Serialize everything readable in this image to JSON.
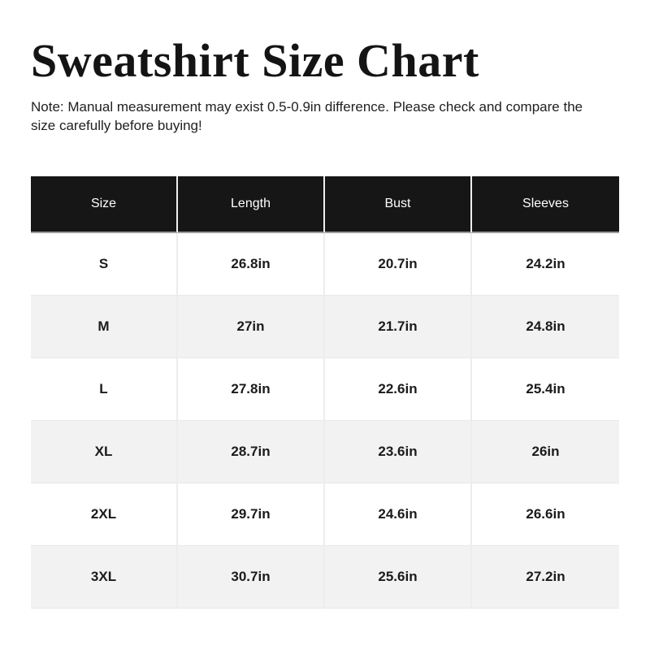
{
  "header": {
    "title": "Sweatshirt Size Chart",
    "note": "Note: Manual measurement may exist 0.5-0.9in difference. Please check and compare the size carefully before buying!"
  },
  "chart_data": {
    "type": "table",
    "title": "Sweatshirt Size Chart",
    "columns": [
      "Size",
      "Length",
      "Bust",
      "Sleeves"
    ],
    "rows": [
      [
        "S",
        "26.8in",
        "20.7in",
        "24.2in"
      ],
      [
        "M",
        "27in",
        "21.7in",
        "24.8in"
      ],
      [
        "L",
        "27.8in",
        "22.6in",
        "25.4in"
      ],
      [
        "XL",
        "28.7in",
        "23.6in",
        "26in"
      ],
      [
        "2XL",
        "29.7in",
        "24.6in",
        "26.6in"
      ],
      [
        "3XL",
        "30.7in",
        "25.6in",
        "27.2in"
      ]
    ],
    "layout_hints": {
      "header_background": "#161616",
      "header_text_color": "#ffffff",
      "zebra_row_background": "#f2f2f2",
      "default_row_background": "#ffffff",
      "unit": "in",
      "zebra_striping": "even rows shaded"
    }
  }
}
